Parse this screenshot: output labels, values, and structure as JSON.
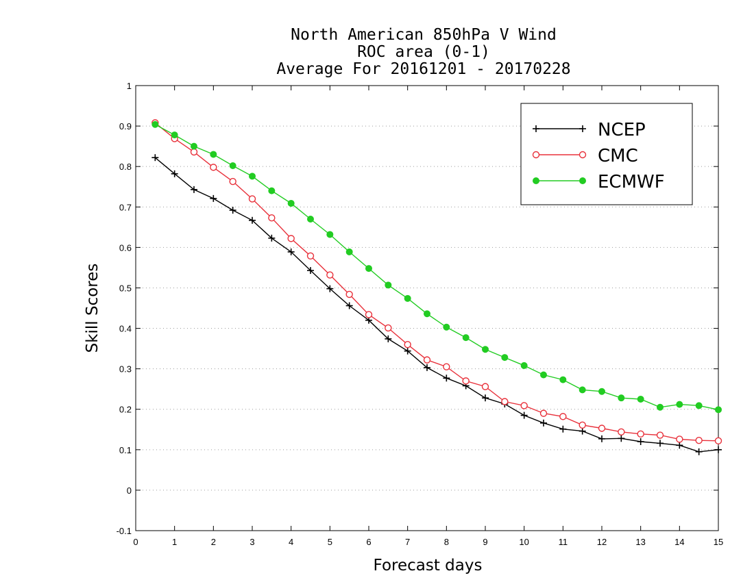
{
  "chart_data": {
    "type": "line",
    "title_lines": [
      "North American 850hPa V Wind",
      "ROC area (0-1)",
      "Average For 20161201 - 20170228"
    ],
    "xlabel": "Forecast days",
    "ylabel": "Skill Scores",
    "xlim": [
      0,
      15
    ],
    "ylim": [
      -0.1,
      1
    ],
    "x_ticks": [
      "0",
      "1",
      "2",
      "3",
      "4",
      "5",
      "6",
      "7",
      "8",
      "9",
      "10",
      "11",
      "12",
      "13",
      "14",
      "15"
    ],
    "y_ticks": [
      "-0.1",
      "0",
      "0.1",
      "0.2",
      "0.3",
      "0.4",
      "0.5",
      "0.6",
      "0.7",
      "0.8",
      "0.9",
      "1"
    ],
    "grid": "horizontal dotted",
    "legend_position": "top-right",
    "x": [
      0.5,
      1,
      1.5,
      2,
      2.5,
      3,
      3.5,
      4,
      4.5,
      5,
      5.5,
      6,
      6.5,
      7,
      7.5,
      8,
      8.5,
      9,
      9.5,
      10,
      10.5,
      11,
      11.5,
      12,
      12.5,
      13,
      13.5,
      14,
      14.5,
      15
    ],
    "series": [
      {
        "name": "NCEP",
        "color": "#000000",
        "marker": "plus",
        "values": [
          0.822,
          0.782,
          0.743,
          0.721,
          0.692,
          0.667,
          0.623,
          0.589,
          0.543,
          0.498,
          0.456,
          0.42,
          0.374,
          0.344,
          0.303,
          0.277,
          0.258,
          0.228,
          0.213,
          0.185,
          0.166,
          0.151,
          0.146,
          0.127,
          0.128,
          0.12,
          0.116,
          0.111,
          0.095,
          0.1
        ]
      },
      {
        "name": "CMC",
        "color": "#e8303a",
        "marker": "open-circle",
        "values": [
          0.908,
          0.869,
          0.836,
          0.798,
          0.763,
          0.72,
          0.673,
          0.622,
          0.579,
          0.532,
          0.484,
          0.434,
          0.401,
          0.36,
          0.322,
          0.305,
          0.27,
          0.256,
          0.219,
          0.209,
          0.19,
          0.182,
          0.161,
          0.153,
          0.144,
          0.139,
          0.136,
          0.126,
          0.123,
          0.122
        ]
      },
      {
        "name": "ECMWF",
        "color": "#22cc22",
        "marker": "filled-circle",
        "values": [
          0.904,
          0.878,
          0.85,
          0.83,
          0.802,
          0.776,
          0.74,
          0.709,
          0.67,
          0.632,
          0.589,
          0.548,
          0.507,
          0.474,
          0.436,
          0.403,
          0.377,
          0.348,
          0.328,
          0.308,
          0.285,
          0.273,
          0.248,
          0.244,
          0.228,
          0.225,
          0.205,
          0.212,
          0.209,
          0.199
        ]
      }
    ]
  }
}
